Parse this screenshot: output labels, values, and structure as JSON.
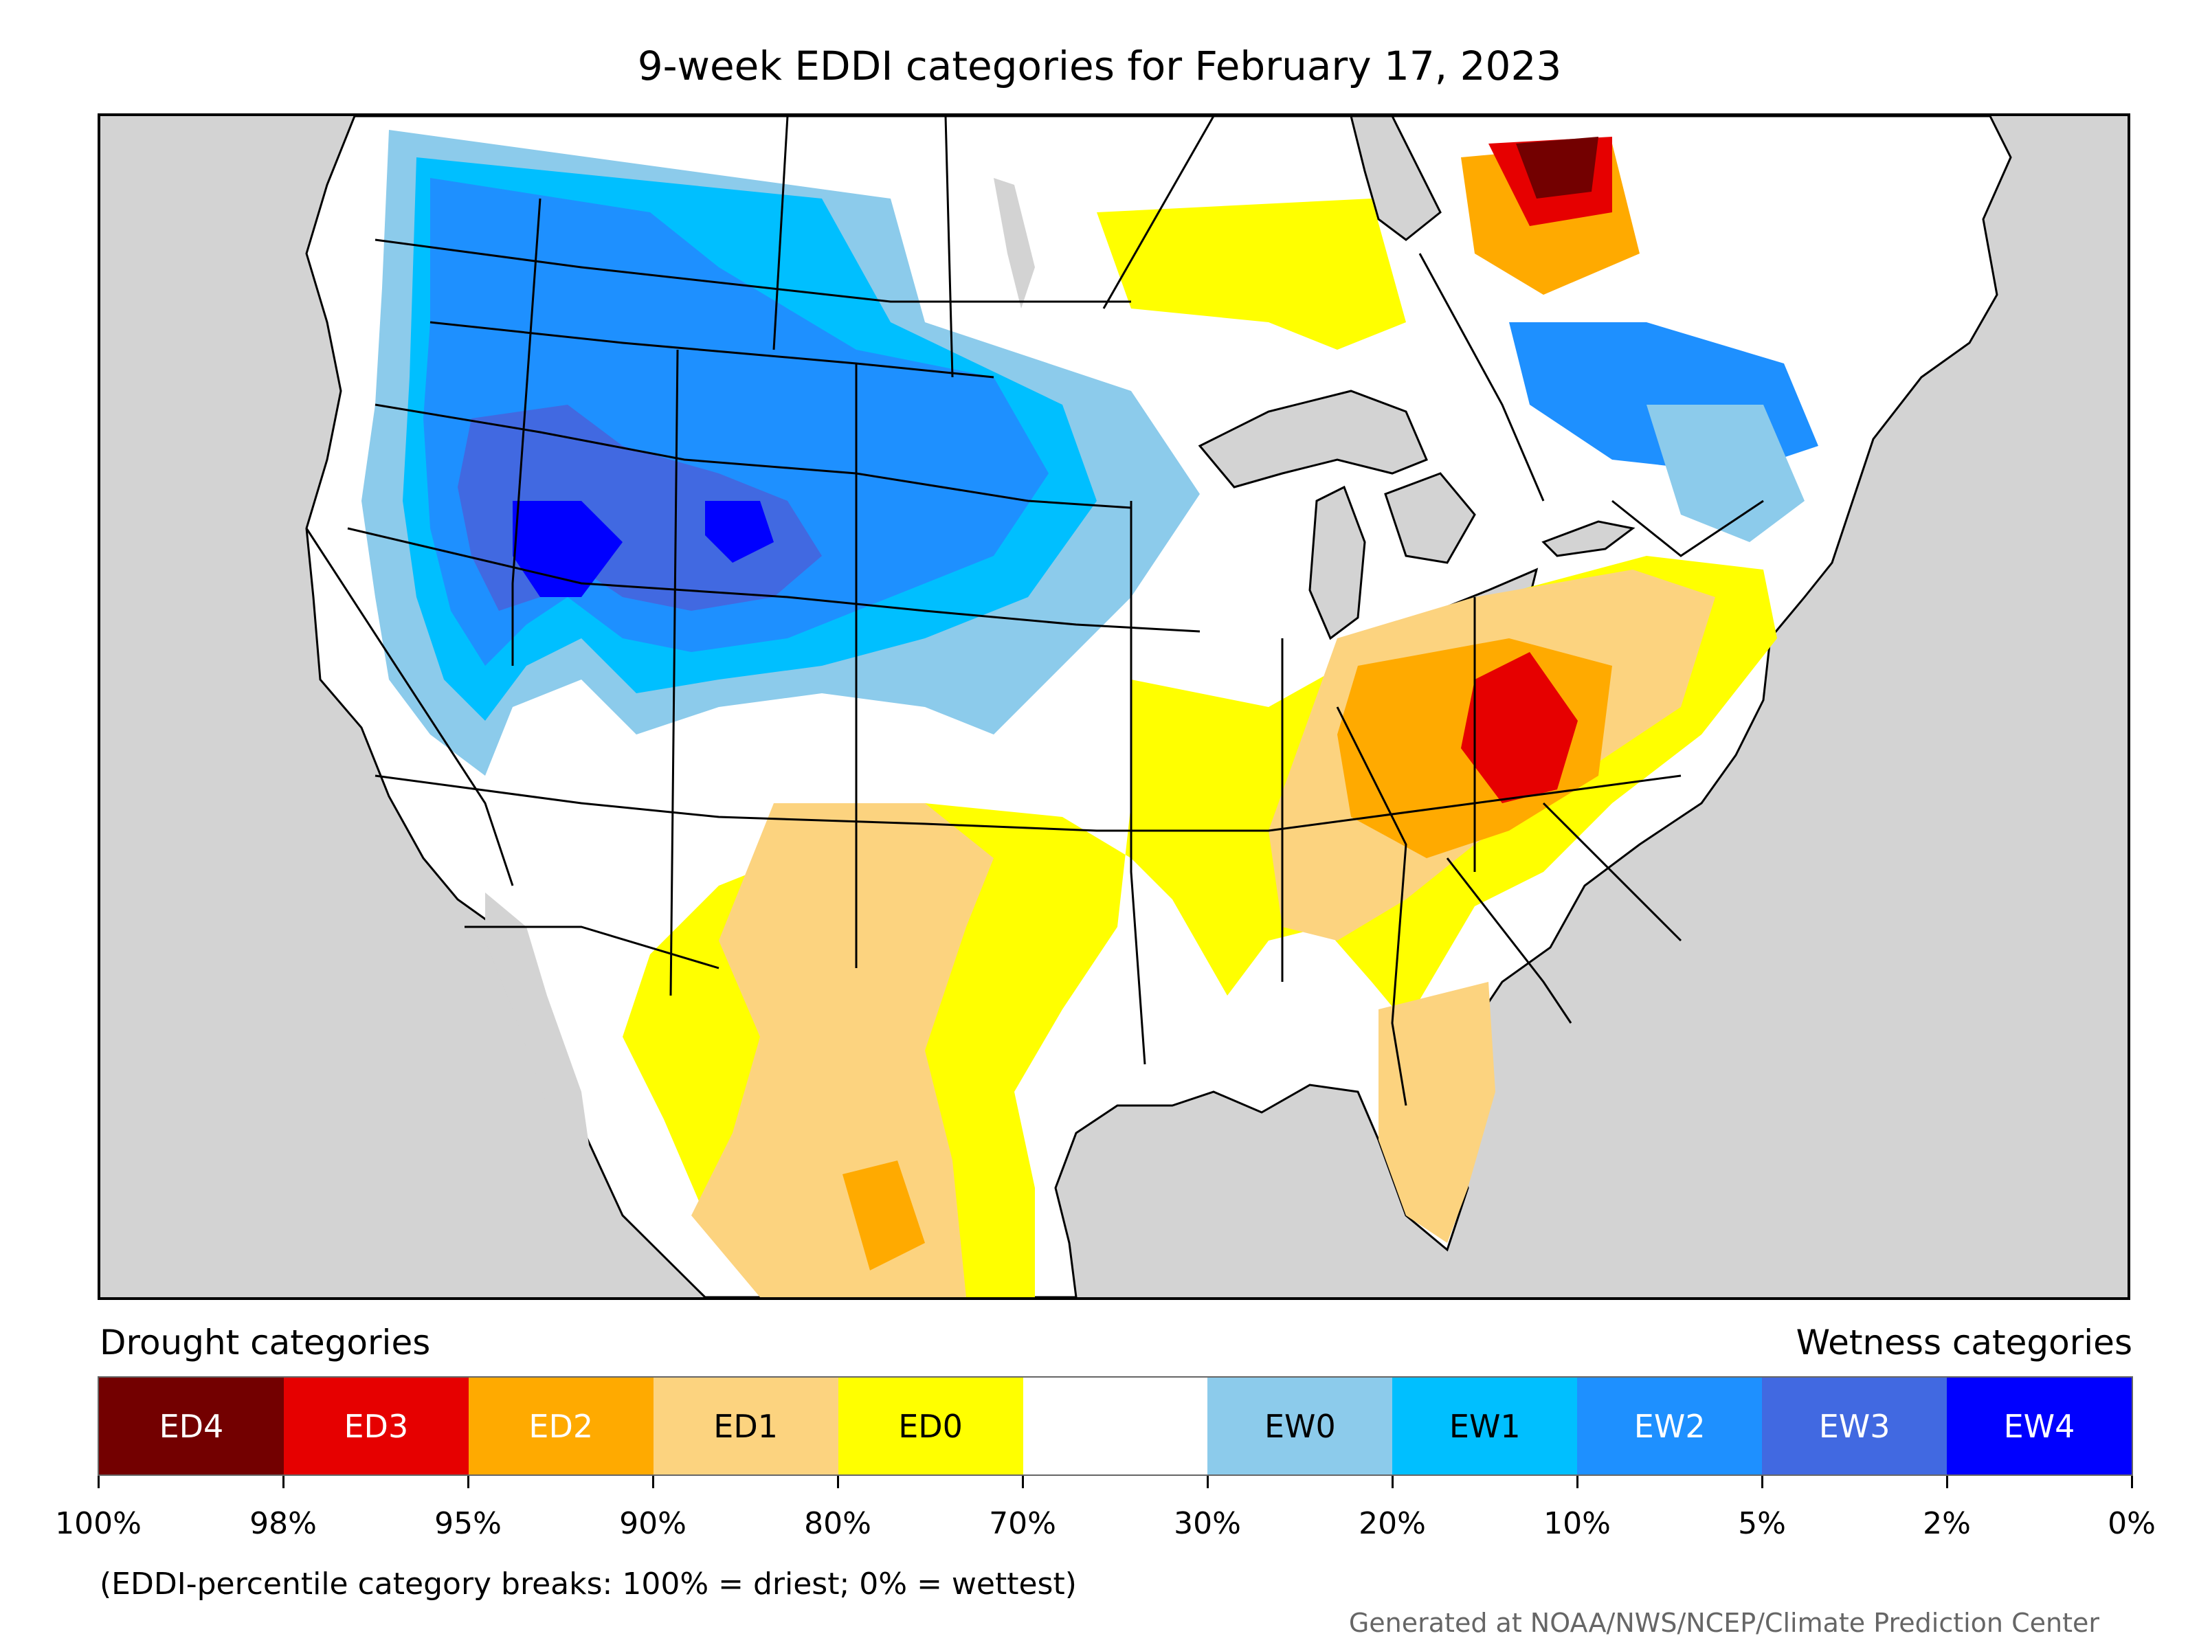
{
  "title": "9-week EDDI categories for February 17, 2023",
  "legend": {
    "drought_label": "Drought categories",
    "wetness_label": "Wetness categories",
    "categories": [
      {
        "label": "ED4",
        "color": "#730000",
        "text_color": "#ffffff"
      },
      {
        "label": "ED3",
        "color": "#e60000",
        "text_color": "#ffffff"
      },
      {
        "label": "ED2",
        "color": "#ffaa00",
        "text_color": "#ffffff"
      },
      {
        "label": "ED1",
        "color": "#fcd37f",
        "text_color": "#000000"
      },
      {
        "label": "ED0",
        "color": "#ffff00",
        "text_color": "#000000"
      },
      {
        "label": "",
        "color": "#ffffff",
        "text_color": "#000000"
      },
      {
        "label": "EW0",
        "color": "#8ccbeb",
        "text_color": "#000000"
      },
      {
        "label": "EW1",
        "color": "#00bfff",
        "text_color": "#000000"
      },
      {
        "label": "EW2",
        "color": "#1e90ff",
        "text_color": "#ffffff"
      },
      {
        "label": "EW3",
        "color": "#4169e1",
        "text_color": "#ffffff"
      },
      {
        "label": "EW4",
        "color": "#0000ff",
        "text_color": "#ffffff"
      }
    ],
    "tick_labels": [
      "100%",
      "98%",
      "95%",
      "90%",
      "80%",
      "70%",
      "30%",
      "20%",
      "10%",
      "5%",
      "2%",
      "0%"
    ]
  },
  "note": "(EDDI-percentile category breaks: 100% = driest; 0% = wettest)",
  "credit": "Generated at NOAA/NWS/NCEP/Climate Prediction Center"
}
